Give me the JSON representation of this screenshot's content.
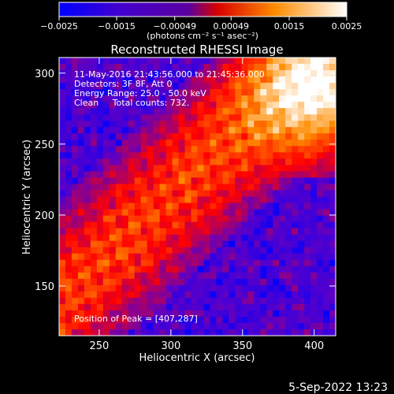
{
  "chart_data": {
    "type": "heatmap",
    "title": "Reconstructed RHESSI Image",
    "xlabel": "Heliocentric X (arcsec)",
    "ylabel": "Heliocentric Y (arcsec)",
    "xlim": [
      222,
      415
    ],
    "ylim": [
      115,
      311
    ],
    "x_ticks": [
      250,
      300,
      350,
      400
    ],
    "y_ticks": [
      150,
      200,
      250,
      300
    ],
    "colorbar": {
      "range": [
        -0.0025,
        0.0025
      ],
      "tick_values": [
        -0.0025,
        -0.0015,
        -0.00049,
        0.00049,
        0.0015,
        0.0025
      ],
      "tick_labels": [
        "−0.0025",
        "−0.0015",
        "−0.00049",
        "0.00049",
        "0.0015",
        "0.0025"
      ],
      "label": "(photons cm⁻² s⁻¹ asec⁻²)",
      "colormap": [
        "#0000ff",
        "#5a00c8",
        "#ff0000",
        "#ff8c00",
        "#ffffff"
      ]
    },
    "annotations": [
      "11-May-2016 21:43:56.000 to 21:45:36.000",
      "Detectors: 3F 8F, Att 0",
      "Energy Range: 25.0 - 50.0 keV",
      "Clean     Total counts: 732."
    ],
    "peak": {
      "label": "Position of Peak = [407,287]",
      "x": 407,
      "y": 287
    }
  },
  "footer": {
    "timestamp": "5-Sep-2022 13:23"
  }
}
